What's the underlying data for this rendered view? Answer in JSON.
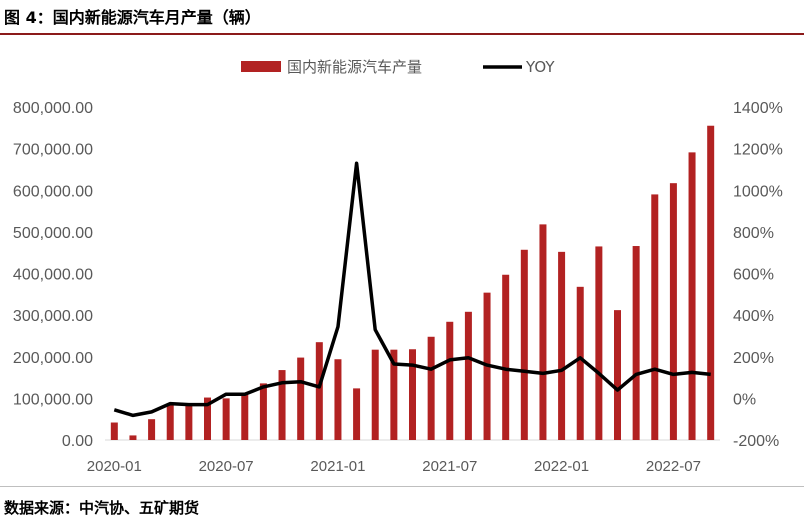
{
  "title": "图 4：国内新能源汽车月产量（辆）",
  "source": "数据来源：中汽协、五矿期货",
  "colors": {
    "bar": "#B22222",
    "line": "#000000",
    "axis": "#d9d9d9",
    "text": "#595959"
  },
  "chart_data": {
    "type": "bar+line",
    "title": "图 4：国内新能源汽车月产量（辆）",
    "left_axis": {
      "ylim": [
        0,
        800000
      ],
      "ticks": [
        "0.00",
        "100,000.00",
        "200,000.00",
        "300,000.00",
        "400,000.00",
        "500,000.00",
        "600,000.00",
        "700,000.00",
        "800,000.00"
      ]
    },
    "right_axis": {
      "ylim": [
        -200,
        1400
      ],
      "unit": "%",
      "ticks": [
        "-200%",
        "0%",
        "200%",
        "400%",
        "600%",
        "800%",
        "1000%",
        "1200%",
        "1400%"
      ]
    },
    "x_tick_labels": [
      "2020-01",
      "2020-07",
      "2021-01",
      "2021-07",
      "2022-01",
      "2022-07"
    ],
    "legend": {
      "position": "top",
      "entries": [
        "国内新能源汽车产量",
        "YOY"
      ]
    },
    "categories": [
      "2020-01",
      "2020-02",
      "2020-03",
      "2020-04",
      "2020-05",
      "2020-06",
      "2020-07",
      "2020-08",
      "2020-09",
      "2020-10",
      "2020-11",
      "2020-12",
      "2021-01",
      "2021-02",
      "2021-03",
      "2021-04",
      "2021-05",
      "2021-06",
      "2021-07",
      "2021-08",
      "2021-09",
      "2021-10",
      "2021-11",
      "2021-12",
      "2022-01",
      "2022-02",
      "2022-03",
      "2022-04",
      "2022-05",
      "2022-06",
      "2022-07",
      "2022-08",
      "2022-09"
    ],
    "series": [
      {
        "name": "国内新能源汽车产量",
        "kind": "bar",
        "axis": "left",
        "values": [
          42000,
          11000,
          50000,
          83000,
          86000,
          102000,
          100000,
          109000,
          136000,
          168000,
          198000,
          235000,
          194000,
          124000,
          217000,
          217000,
          218000,
          248000,
          284000,
          308000,
          354000,
          397000,
          457000,
          518000,
          452000,
          368000,
          465000,
          312000,
          466000,
          590000,
          617000,
          691000,
          755000
        ]
      },
      {
        "name": "YOY",
        "kind": "line",
        "axis": "right",
        "values": [
          -55,
          -82,
          -65,
          -25,
          -30,
          -30,
          20,
          20,
          55,
          75,
          80,
          55,
          345,
          1130,
          330,
          165,
          160,
          140,
          185,
          195,
          160,
          140,
          130,
          120,
          135,
          195,
          120,
          40,
          115,
          140,
          115,
          125,
          115
        ]
      }
    ]
  }
}
